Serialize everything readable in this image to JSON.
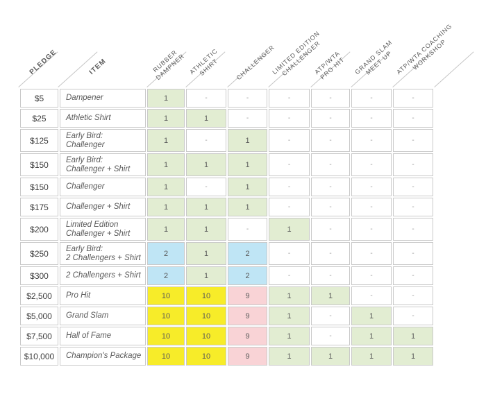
{
  "chart_data": {
    "type": "table",
    "title": "Pledge reward matrix",
    "corner_headers": [
      "PLEDGE",
      "ITEM"
    ],
    "columns": [
      "RUBBER\nDAMPNER",
      "ATHLETIC\nSHIRT",
      "CHALLENGER",
      "LIMITED EDITION\nCHALLENGER",
      "ATP/WTA\nPRO HIT",
      "GRAND SLAM\nMEET UP",
      "ATP/WTA COACHING\nWORKSHOP"
    ],
    "rows": [
      {
        "pledge": "$5",
        "item": "Dampener",
        "cells": [
          {
            "text": "1",
            "color": "green"
          },
          {
            "text": "-",
            "color": "none"
          },
          {
            "text": "-",
            "color": "none"
          },
          {
            "text": "-",
            "color": "none"
          },
          {
            "text": "-",
            "color": "none"
          },
          {
            "text": "-",
            "color": "none"
          },
          {
            "text": "-",
            "color": "none"
          }
        ]
      },
      {
        "pledge": "$25",
        "item": "Athletic Shirt",
        "cells": [
          {
            "text": "1",
            "color": "green"
          },
          {
            "text": "1",
            "color": "green"
          },
          {
            "text": "-",
            "color": "none"
          },
          {
            "text": "-",
            "color": "none"
          },
          {
            "text": "-",
            "color": "none"
          },
          {
            "text": "-",
            "color": "none"
          },
          {
            "text": "-",
            "color": "none"
          }
        ]
      },
      {
        "pledge": "$125",
        "item": "Early Bird:\nChallenger",
        "cells": [
          {
            "text": "1",
            "color": "green"
          },
          {
            "text": "-",
            "color": "none"
          },
          {
            "text": "1",
            "color": "green"
          },
          {
            "text": "-",
            "color": "none"
          },
          {
            "text": "-",
            "color": "none"
          },
          {
            "text": "-",
            "color": "none"
          },
          {
            "text": "-",
            "color": "none"
          }
        ]
      },
      {
        "pledge": "$150",
        "item": "Early Bird:\nChallenger + Shirt",
        "cells": [
          {
            "text": "1",
            "color": "green"
          },
          {
            "text": "1",
            "color": "green"
          },
          {
            "text": "1",
            "color": "green"
          },
          {
            "text": "-",
            "color": "none"
          },
          {
            "text": "-",
            "color": "none"
          },
          {
            "text": "-",
            "color": "none"
          },
          {
            "text": "-",
            "color": "none"
          }
        ]
      },
      {
        "pledge": "$150",
        "item": "Challenger",
        "cells": [
          {
            "text": "1",
            "color": "green"
          },
          {
            "text": "-",
            "color": "none"
          },
          {
            "text": "1",
            "color": "green"
          },
          {
            "text": "-",
            "color": "none"
          },
          {
            "text": "-",
            "color": "none"
          },
          {
            "text": "-",
            "color": "none"
          },
          {
            "text": "-",
            "color": "none"
          }
        ]
      },
      {
        "pledge": "$175",
        "item": "Challenger + Shirt",
        "cells": [
          {
            "text": "1",
            "color": "green"
          },
          {
            "text": "1",
            "color": "green"
          },
          {
            "text": "1",
            "color": "green"
          },
          {
            "text": "-",
            "color": "none"
          },
          {
            "text": "-",
            "color": "none"
          },
          {
            "text": "-",
            "color": "none"
          },
          {
            "text": "-",
            "color": "none"
          }
        ]
      },
      {
        "pledge": "$200",
        "item": "Limited Edition\nChallenger + Shirt",
        "cells": [
          {
            "text": "1",
            "color": "green"
          },
          {
            "text": "1",
            "color": "green"
          },
          {
            "text": "-",
            "color": "none"
          },
          {
            "text": "1",
            "color": "green"
          },
          {
            "text": "-",
            "color": "none"
          },
          {
            "text": "-",
            "color": "none"
          },
          {
            "text": "-",
            "color": "none"
          }
        ]
      },
      {
        "pledge": "$250",
        "item": "Early Bird:\n2 Challengers + Shirt",
        "cells": [
          {
            "text": "2",
            "color": "blue"
          },
          {
            "text": "1",
            "color": "green"
          },
          {
            "text": "2",
            "color": "blue"
          },
          {
            "text": "-",
            "color": "none"
          },
          {
            "text": "-",
            "color": "none"
          },
          {
            "text": "-",
            "color": "none"
          },
          {
            "text": "-",
            "color": "none"
          }
        ]
      },
      {
        "pledge": "$300",
        "item": "2 Challengers + Shirt",
        "cells": [
          {
            "text": "2",
            "color": "blue"
          },
          {
            "text": "1",
            "color": "green"
          },
          {
            "text": "2",
            "color": "blue"
          },
          {
            "text": "-",
            "color": "none"
          },
          {
            "text": "-",
            "color": "none"
          },
          {
            "text": "-",
            "color": "none"
          },
          {
            "text": "-",
            "color": "none"
          }
        ]
      },
      {
        "pledge": "$2,500",
        "item": "Pro Hit",
        "cells": [
          {
            "text": "10",
            "color": "yellow"
          },
          {
            "text": "10",
            "color": "yellow"
          },
          {
            "text": "9",
            "color": "pink"
          },
          {
            "text": "1",
            "color": "green"
          },
          {
            "text": "1",
            "color": "green"
          },
          {
            "text": "-",
            "color": "none"
          },
          {
            "text": "-",
            "color": "none"
          }
        ]
      },
      {
        "pledge": "$5,000",
        "item": "Grand Slam",
        "cells": [
          {
            "text": "10",
            "color": "yellow"
          },
          {
            "text": "10",
            "color": "yellow"
          },
          {
            "text": "9",
            "color": "pink"
          },
          {
            "text": "1",
            "color": "green"
          },
          {
            "text": "-",
            "color": "none"
          },
          {
            "text": "1",
            "color": "green"
          },
          {
            "text": "-",
            "color": "none"
          }
        ]
      },
      {
        "pledge": "$7,500",
        "item": "Hall of Fame",
        "cells": [
          {
            "text": "10",
            "color": "yellow"
          },
          {
            "text": "10",
            "color": "yellow"
          },
          {
            "text": "9",
            "color": "pink"
          },
          {
            "text": "1",
            "color": "green"
          },
          {
            "text": "-",
            "color": "none"
          },
          {
            "text": "1",
            "color": "green"
          },
          {
            "text": "1",
            "color": "green"
          }
        ]
      },
      {
        "pledge": "$10,000",
        "item": "Champion's Package",
        "cells": [
          {
            "text": "10",
            "color": "yellow"
          },
          {
            "text": "10",
            "color": "yellow"
          },
          {
            "text": "9",
            "color": "pink"
          },
          {
            "text": "1",
            "color": "green"
          },
          {
            "text": "1",
            "color": "green"
          },
          {
            "text": "1",
            "color": "green"
          },
          {
            "text": "1",
            "color": "green"
          }
        ]
      }
    ],
    "legend_colors": {
      "green": "#e2edd2",
      "blue": "#bfe5f5",
      "yellow": "#f7ec29",
      "pink": "#f9d3d6"
    }
  },
  "colors": {
    "border": "#c9c9c9",
    "line": "#c6c6c6",
    "header_text": "#595959",
    "value_text": "#595959",
    "item_text": "#595959",
    "pledge_text": "#3c3c3c",
    "dash_text": "#9a9a9a"
  }
}
